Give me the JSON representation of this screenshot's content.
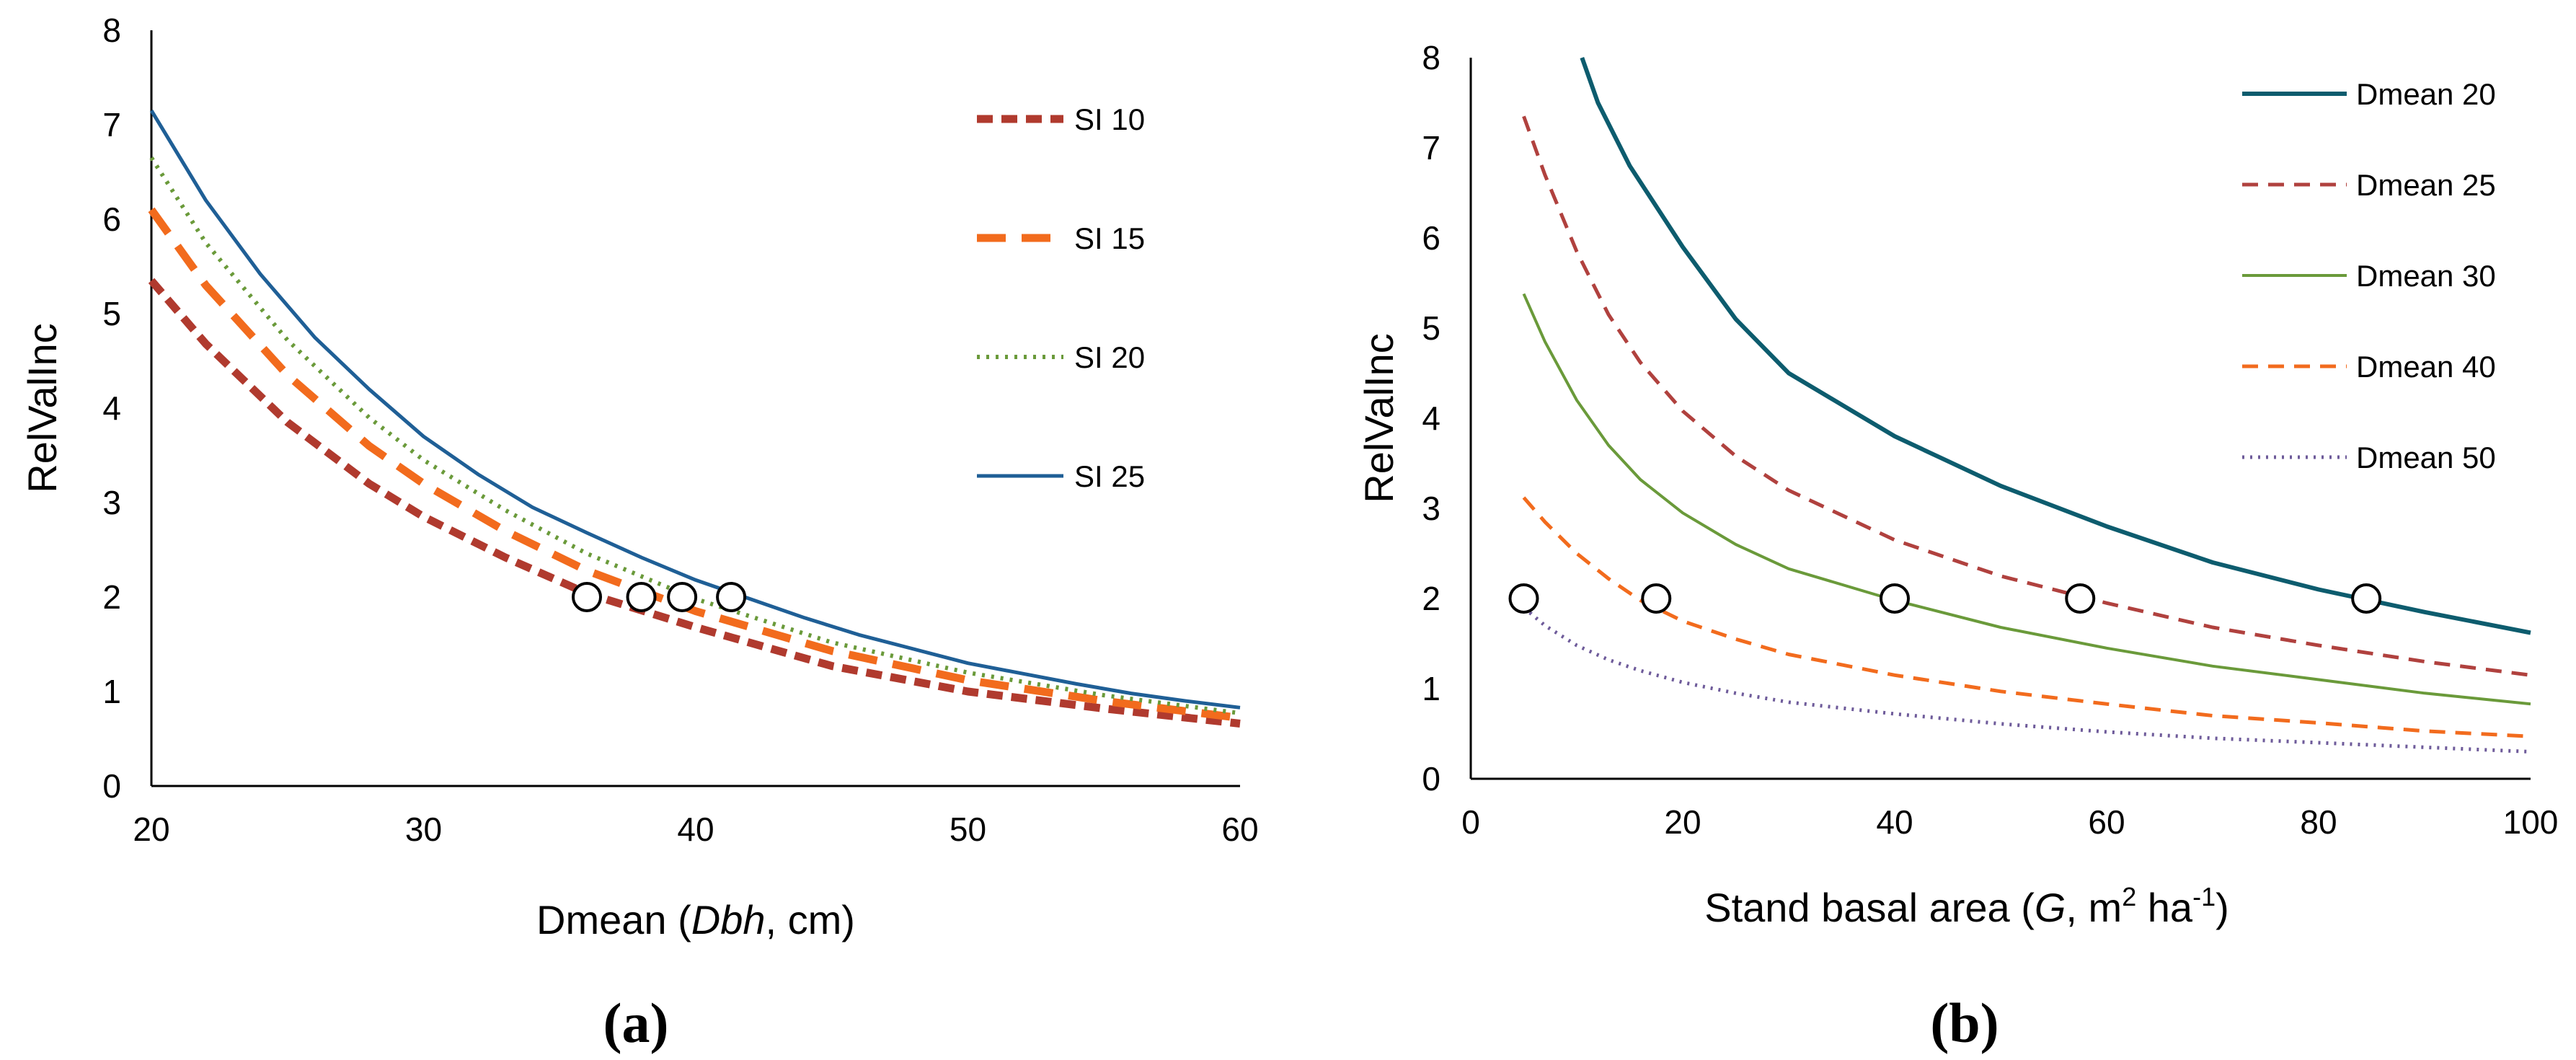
{
  "chart_data": [
    {
      "type": "line",
      "panel_label": "(a)",
      "xlabel": "Dmean (Dbh, cm)",
      "xlabel_parts": [
        "Dmean (",
        "Dbh",
        ", cm)"
      ],
      "ylabel": "RelValInc",
      "xlim": [
        20,
        60
      ],
      "ylim": [
        0,
        8
      ],
      "xticks": [
        "20",
        "30",
        "40",
        "50",
        "60"
      ],
      "yticks": [
        "0",
        "1",
        "2",
        "3",
        "4",
        "5",
        "6",
        "7",
        "8"
      ],
      "grid": false,
      "legend": "right",
      "series": [
        {
          "name": "SI 10",
          "color": "#b03a2e",
          "dash": "22 12",
          "width": 11,
          "x": [
            20,
            22,
            25,
            28,
            30,
            33,
            36,
            40,
            45,
            50,
            55,
            60
          ],
          "y": [
            5.35,
            4.68,
            3.85,
            3.2,
            2.85,
            2.42,
            2.04,
            1.68,
            1.27,
            1.0,
            0.82,
            0.66
          ]
        },
        {
          "name": "SI 15",
          "color": "#f26b1d",
          "dash": "40 22",
          "width": 11,
          "x": [
            20,
            22,
            25,
            28,
            30,
            33,
            36,
            40,
            45,
            50,
            55,
            60
          ],
          "y": [
            6.1,
            5.3,
            4.35,
            3.6,
            3.2,
            2.7,
            2.28,
            1.85,
            1.43,
            1.12,
            0.9,
            0.72
          ]
        },
        {
          "name": "SI 20",
          "color": "#6a9a3a",
          "dash": "4 9",
          "width": 6,
          "x": [
            20,
            22,
            25,
            28,
            30,
            33,
            36,
            40,
            45,
            50,
            55,
            60
          ],
          "y": [
            6.65,
            5.75,
            4.72,
            3.9,
            3.45,
            2.92,
            2.46,
            1.98,
            1.52,
            1.2,
            0.96,
            0.77
          ]
        },
        {
          "name": "SI 25",
          "color": "#1f5f96",
          "dash": "",
          "width": 5,
          "x": [
            20,
            22,
            24,
            26,
            28,
            30,
            32,
            34,
            36,
            38,
            40,
            42,
            44,
            46,
            48,
            50,
            52,
            54,
            56,
            58,
            60
          ],
          "y": [
            7.15,
            6.2,
            5.42,
            4.75,
            4.2,
            3.7,
            3.3,
            2.95,
            2.68,
            2.42,
            2.18,
            1.98,
            1.78,
            1.6,
            1.45,
            1.3,
            1.19,
            1.08,
            0.98,
            0.9,
            0.83
          ]
        }
      ],
      "markers": [
        {
          "x": 36.0,
          "y": 2.0
        },
        {
          "x": 38.0,
          "y": 2.0
        },
        {
          "x": 39.5,
          "y": 2.0
        },
        {
          "x": 41.3,
          "y": 2.0
        }
      ]
    },
    {
      "type": "line",
      "panel_label": "(b)",
      "xlabel": "Stand basal area (G, m2 ha-1)",
      "xlabel_parts": [
        "Stand basal area (",
        "G",
        ", m",
        "2",
        " ha",
        "-1",
        ")"
      ],
      "ylabel": "RelValInc",
      "xlim": [
        0,
        100
      ],
      "ylim": [
        0,
        8
      ],
      "xticks": [
        "0",
        "20",
        "40",
        "60",
        "80",
        "100"
      ],
      "yticks": [
        "0",
        "1",
        "2",
        "3",
        "4",
        "5",
        "6",
        "7",
        "8"
      ],
      "grid": false,
      "legend": "right",
      "series": [
        {
          "name": "Dmean 20",
          "color": "#0d5c6e",
          "dash": "",
          "width": 6,
          "x": [
            10.5,
            12,
            15,
            20,
            25,
            30,
            40,
            50,
            60,
            70,
            80,
            90,
            100
          ],
          "y": [
            8.0,
            7.5,
            6.8,
            5.9,
            5.1,
            4.5,
            3.8,
            3.25,
            2.8,
            2.4,
            2.1,
            1.85,
            1.62
          ]
        },
        {
          "name": "Dmean 25",
          "color": "#b0413e",
          "dash": "22 14",
          "width": 5,
          "x": [
            5,
            7,
            10,
            13,
            16,
            20,
            25,
            30,
            40,
            50,
            60,
            70,
            80,
            90,
            100
          ],
          "y": [
            7.35,
            6.7,
            5.85,
            5.15,
            4.62,
            4.08,
            3.58,
            3.2,
            2.65,
            2.25,
            1.95,
            1.68,
            1.48,
            1.3,
            1.15
          ]
        },
        {
          "name": "Dmean 30",
          "color": "#6a9a3a",
          "dash": "",
          "width": 4,
          "x": [
            5,
            7,
            10,
            13,
            16,
            20,
            25,
            30,
            40,
            50,
            60,
            70,
            80,
            90,
            100
          ],
          "y": [
            5.38,
            4.85,
            4.2,
            3.7,
            3.32,
            2.95,
            2.6,
            2.33,
            1.98,
            1.68,
            1.45,
            1.25,
            1.1,
            0.95,
            0.83
          ]
        },
        {
          "name": "Dmean 40",
          "color": "#f26b1d",
          "dash": "22 14",
          "width": 5,
          "x": [
            5,
            7,
            10,
            13,
            16,
            20,
            25,
            30,
            40,
            50,
            60,
            70,
            80,
            90,
            100
          ],
          "y": [
            3.12,
            2.85,
            2.5,
            2.22,
            1.98,
            1.75,
            1.55,
            1.38,
            1.15,
            0.97,
            0.83,
            0.7,
            0.62,
            0.53,
            0.47
          ]
        },
        {
          "name": "Dmean 50",
          "color": "#6e5b9a",
          "dash": "3 8",
          "width": 5,
          "x": [
            5,
            7,
            10,
            13,
            16,
            20,
            25,
            30,
            40,
            50,
            60,
            70,
            80,
            90,
            100
          ],
          "y": [
            1.9,
            1.7,
            1.48,
            1.32,
            1.2,
            1.07,
            0.95,
            0.85,
            0.72,
            0.61,
            0.52,
            0.45,
            0.4,
            0.35,
            0.3
          ]
        }
      ],
      "markers": [
        {
          "x": 5.0,
          "y": 2.0
        },
        {
          "x": 17.5,
          "y": 2.0
        },
        {
          "x": 40.0,
          "y": 2.0
        },
        {
          "x": 57.5,
          "y": 2.0
        },
        {
          "x": 84.5,
          "y": 2.0
        }
      ]
    }
  ]
}
